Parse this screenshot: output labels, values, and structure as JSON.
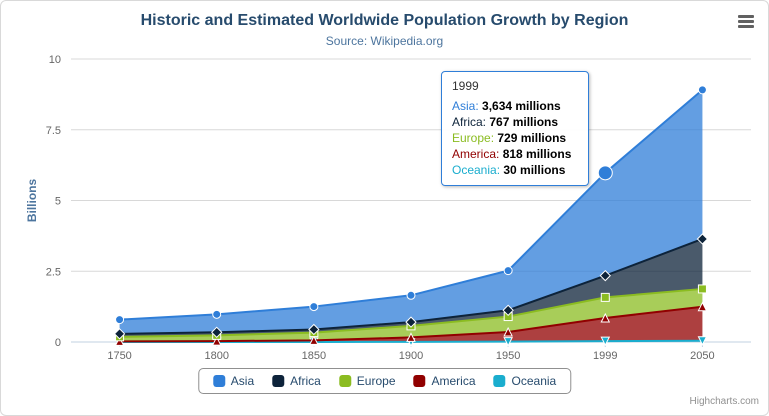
{
  "chart": {
    "title": "Historic and Estimated Worldwide Population Growth by Region",
    "subtitle": "Source: Wikipedia.org"
  },
  "y_axis": {
    "title": "Billions"
  },
  "chart_data": {
    "type": "area",
    "stacking": "normal",
    "title": "Historic and Estimated Worldwide Population Growth by Region",
    "subtitle": "Source: Wikipedia.org",
    "categories": [
      "1750",
      "1800",
      "1850",
      "1900",
      "1950",
      "1999",
      "2050"
    ],
    "unit": "millions",
    "ylabel": "Billions",
    "xlabel": "",
    "ylim": [
      0,
      10
    ],
    "y_ticks": [
      0,
      2.5,
      5,
      7.5,
      10
    ],
    "y_tick_labels": [
      "0",
      "2.5",
      "5",
      "7.5",
      "10"
    ],
    "grid": true,
    "legend_position": "bottom",
    "series": [
      {
        "name": "Asia",
        "color": "#2f7ed8",
        "marker": "circle",
        "values": [
          502,
          635,
          809,
          947,
          1402,
          3634,
          5268
        ]
      },
      {
        "name": "Africa",
        "color": "#0d233a",
        "marker": "diamond",
        "values": [
          106,
          107,
          111,
          133,
          221,
          767,
          1766
        ]
      },
      {
        "name": "Europe",
        "color": "#8bbc21",
        "marker": "square",
        "values": [
          163,
          203,
          276,
          408,
          547,
          729,
          628
        ]
      },
      {
        "name": "America",
        "color": "#910000",
        "marker": "triangle",
        "values": [
          18,
          31,
          54,
          156,
          339,
          818,
          1201
        ]
      },
      {
        "name": "Oceania",
        "color": "#1aadce",
        "marker": "triangle-down",
        "values": [
          2,
          2,
          2,
          6,
          13,
          30,
          46
        ]
      }
    ],
    "hover": {
      "category": "1999",
      "category_index": 5,
      "series": "Asia",
      "series_index": 0
    }
  },
  "tooltip": {
    "header": "1999",
    "border_color": "#2f7ed8",
    "rows": [
      {
        "label": "Asia",
        "value": "3,634 millions",
        "color": "#2f7ed8"
      },
      {
        "label": "Africa",
        "value": "767 millions",
        "color": "#0d233a"
      },
      {
        "label": "Europe",
        "value": "729 millions",
        "color": "#8bbc21"
      },
      {
        "label": "America",
        "value": "818 millions",
        "color": "#910000"
      },
      {
        "label": "Oceania",
        "value": "30 millions",
        "color": "#1aadce"
      }
    ]
  },
  "credits": "Highcharts.com",
  "colors": {
    "title": "#274b6d",
    "subtitle": "#4d759e",
    "axis_labels": "#666666",
    "grid": "#d8d8d8",
    "axis_line": "#c0d0e0",
    "legend_border": "#909090",
    "legend_text": "#274b6d",
    "credits": "#909090",
    "fill_opacity": "0.75"
  }
}
